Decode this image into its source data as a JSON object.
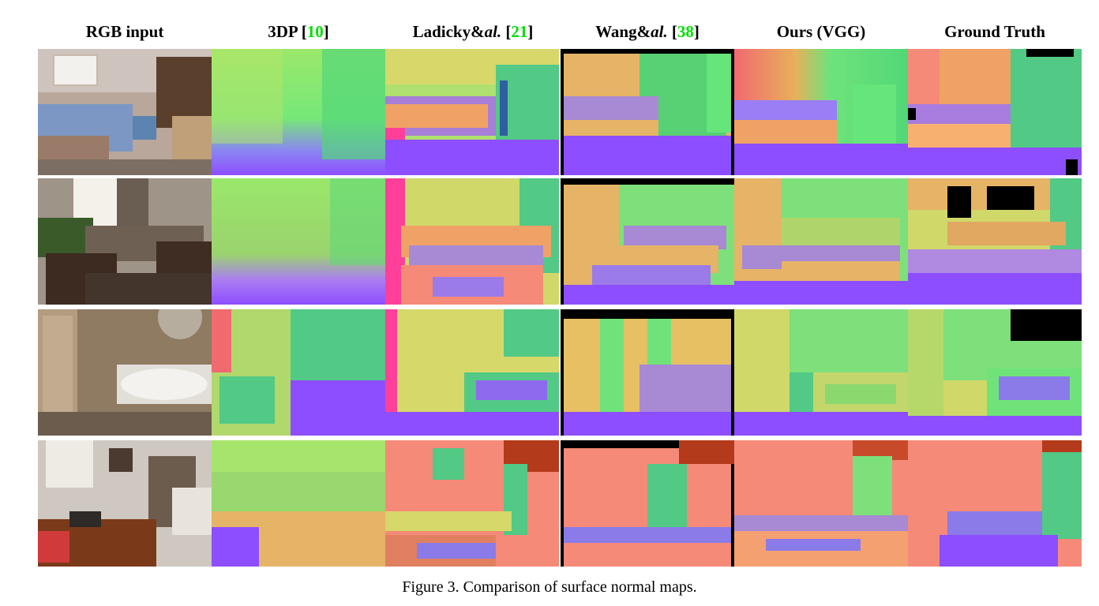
{
  "columns": [
    {
      "key": "rgb",
      "label": "RGB input"
    },
    {
      "key": "3dp",
      "label_main": "3DP",
      "ref": "10"
    },
    {
      "key": "ladicky",
      "label_main": "Ladicky&",
      "label_it": "al.",
      "ref": "21"
    },
    {
      "key": "wang",
      "label_main": "Wang&",
      "label_it": "al.",
      "ref": "38"
    },
    {
      "key": "ours",
      "label": "Ours (VGG)"
    },
    {
      "key": "gt",
      "label": "Ground Truth"
    }
  ],
  "rows": [
    "bedroom",
    "living-room",
    "bathroom",
    "office"
  ],
  "caption": "Figure 3. Comparison of surface normal maps.",
  "colors": {
    "normal_green": "#59ea6a",
    "normal_floor": "#8d4eff",
    "normal_wall_orange": "#f0a266",
    "normal_salmon": "#f58a78",
    "normal_yellow": "#d6d86a",
    "normal_pink": "#ff3f9a",
    "reference_green": "#00e000"
  }
}
